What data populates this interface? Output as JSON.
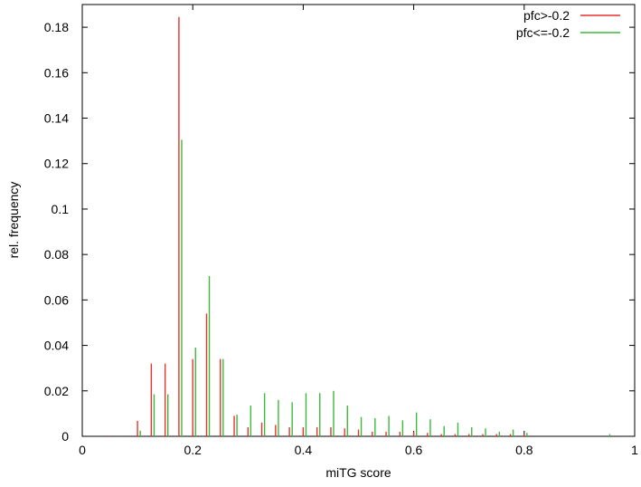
{
  "chart_data": {
    "type": "bar",
    "title": "",
    "xlabel": "miTG score",
    "ylabel": "rel. frequency",
    "xlim": [
      0,
      1
    ],
    "ylim": [
      0,
      0.19
    ],
    "xticks": [
      0,
      0.2,
      0.4,
      0.6,
      0.8,
      1
    ],
    "xtick_labels": [
      "0",
      "0.2",
      "0.4",
      "0.6",
      "0.8",
      "1"
    ],
    "yticks": [
      0,
      0.02,
      0.04,
      0.06,
      0.08,
      0.1,
      0.12,
      0.14,
      0.16,
      0.18
    ],
    "ytick_labels": [
      "0",
      "0.02",
      "0.04",
      "0.06",
      "0.08",
      "0.1",
      "0.12",
      "0.14",
      "0.16",
      "0.18"
    ],
    "grid": false,
    "legend_position": "top-right",
    "series": [
      {
        "name": "pfc>-0.2",
        "color": "#e8322b",
        "x": [
          0.05,
          0.1,
          0.125,
          0.15,
          0.175,
          0.2,
          0.225,
          0.25,
          0.275,
          0.3,
          0.325,
          0.35,
          0.375,
          0.4,
          0.425,
          0.45,
          0.475,
          0.5,
          0.525,
          0.55,
          0.575,
          0.6,
          0.625,
          0.65,
          0.675,
          0.7,
          0.725,
          0.75,
          0.775,
          0.8
        ],
        "values": [
          0.0003,
          0.0068,
          0.032,
          0.032,
          0.1845,
          0.034,
          0.054,
          0.034,
          0.009,
          0.004,
          0.006,
          0.005,
          0.004,
          0.004,
          0.004,
          0.004,
          0.0035,
          0.003,
          0.002,
          0.002,
          0.002,
          0.002,
          0.0015,
          0.001,
          0.001,
          0.001,
          0.001,
          0.001,
          0.001,
          0.001
        ]
      },
      {
        "name": "pfc<=-0.2",
        "color": "#3cb93c",
        "x": [
          0.105,
          0.13,
          0.155,
          0.18,
          0.205,
          0.23,
          0.255,
          0.28,
          0.305,
          0.33,
          0.355,
          0.38,
          0.405,
          0.43,
          0.455,
          0.48,
          0.505,
          0.53,
          0.555,
          0.58,
          0.605,
          0.63,
          0.655,
          0.68,
          0.705,
          0.73,
          0.755,
          0.78,
          0.805,
          0.955
        ],
        "values": [
          0.0025,
          0.0185,
          0.0185,
          0.1305,
          0.039,
          0.0705,
          0.034,
          0.0095,
          0.0135,
          0.019,
          0.016,
          0.015,
          0.019,
          0.019,
          0.02,
          0.0135,
          0.0085,
          0.008,
          0.009,
          0.007,
          0.0105,
          0.0075,
          0.0045,
          0.006,
          0.004,
          0.0035,
          0.002,
          0.003,
          0.0015,
          0.001
        ]
      }
    ]
  }
}
